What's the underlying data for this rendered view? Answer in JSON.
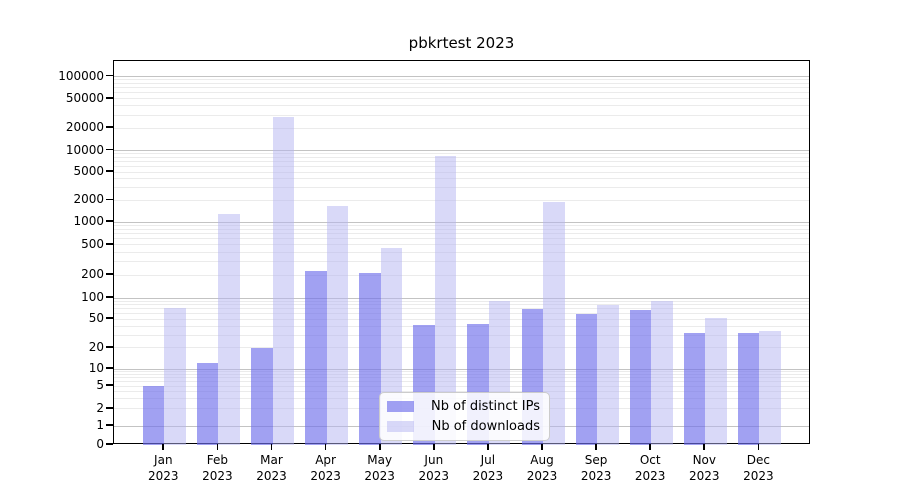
{
  "title": "pbkrtest 2023",
  "colors": {
    "ip_bar": "rgba(110,110,235,0.65)",
    "dl_bar": "rgba(180,180,242,0.5)",
    "grid_major": "#c3c3c3",
    "grid_minor": "#ebebeb",
    "axis": "#000000",
    "legend_border": "#cccccc",
    "legend_bg": "rgba(255,255,255,0.85)"
  },
  "chart_data": {
    "type": "bar",
    "title": "pbkrtest 2023",
    "xlabel": "",
    "ylabel": "",
    "y_scale": "symlog",
    "ylim": [
      0,
      160000
    ],
    "grid": {
      "major": true,
      "minor": true
    },
    "legend_position": "lower center",
    "y_ticks": [
      0,
      1,
      2,
      5,
      10,
      20,
      50,
      100,
      200,
      500,
      1000,
      2000,
      5000,
      10000,
      20000,
      50000,
      100000
    ],
    "categories": [
      "Jan 2023",
      "Feb 2023",
      "Mar 2023",
      "Apr 2023",
      "May 2023",
      "Jun 2023",
      "Jul 2023",
      "Aug 2023",
      "Sep 2023",
      "Oct 2023",
      "Nov 2023",
      "Dec 2023"
    ],
    "series": [
      {
        "name": "Nb of distinct IPs",
        "color": "rgba(110,110,235,0.65)",
        "values": [
          5,
          12,
          20,
          230,
          215,
          42,
          43,
          71,
          60,
          67,
          32,
          32
        ]
      },
      {
        "name": "Nb of downloads",
        "color": "rgba(180,180,242,0.5)",
        "values": [
          72,
          1300,
          28000,
          1700,
          450,
          8400,
          90,
          1900,
          79,
          90,
          52,
          34
        ]
      }
    ]
  }
}
